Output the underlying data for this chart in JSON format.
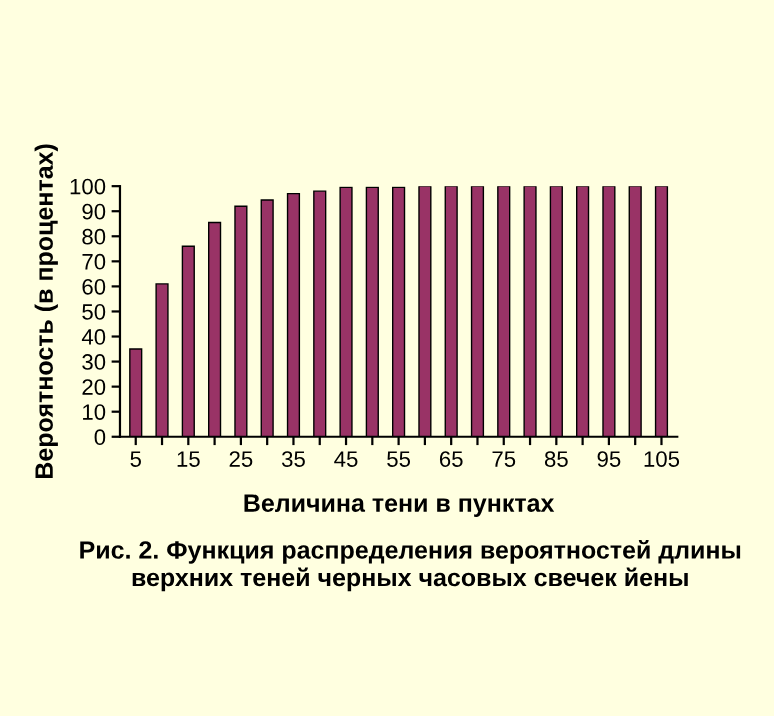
{
  "chart_data": {
    "type": "bar",
    "title": "Рис. 2. Функция распределения вероятностей длины верхних теней черных часовых свечек йены",
    "xlabel": "Величина тени в пунктах",
    "ylabel": "Вероятность (в процентах)",
    "categories": [
      "5",
      null,
      "15",
      null,
      "25",
      null,
      "35",
      null,
      "45",
      null,
      "55",
      null,
      "65",
      null,
      "75",
      null,
      "85",
      null,
      "95",
      null,
      "105"
    ],
    "values": [
      35,
      61,
      76,
      85.5,
      92,
      94.5,
      97,
      98,
      99.5,
      99.5,
      99.5,
      100,
      100,
      100,
      100,
      100,
      100,
      100,
      100,
      100,
      100
    ],
    "color": "#993366",
    "ylim": [
      0,
      100
    ],
    "yticks": [
      0,
      10,
      20,
      30,
      40,
      50,
      60,
      70,
      80,
      90,
      100
    ],
    "grid": false
  }
}
